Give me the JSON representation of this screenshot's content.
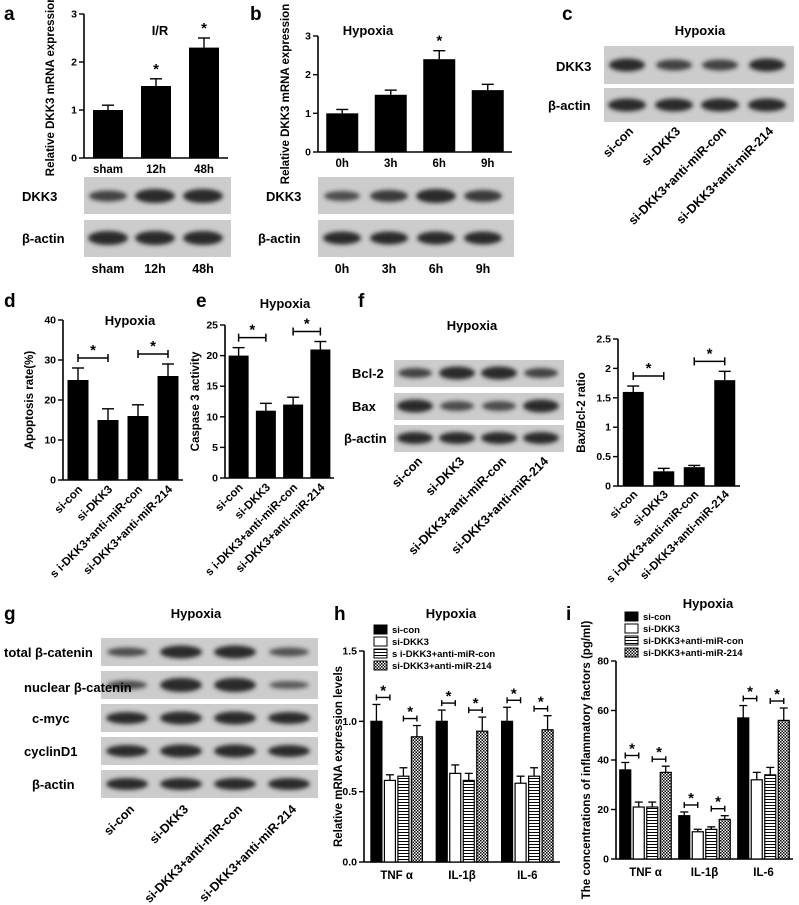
{
  "figure": {
    "panels": [
      {
        "id": "a",
        "label": "a"
      },
      {
        "id": "b",
        "label": "b"
      },
      {
        "id": "c",
        "label": "c"
      },
      {
        "id": "d",
        "label": "d"
      },
      {
        "id": "e",
        "label": "e"
      },
      {
        "id": "f",
        "label": "f"
      },
      {
        "id": "g",
        "label": "g"
      },
      {
        "id": "h",
        "label": "h"
      },
      {
        "id": "i",
        "label": "i"
      }
    ]
  },
  "blots": {
    "a": {
      "bands": [
        "DKK3",
        "β-actin"
      ],
      "lanes": [
        "sham",
        "12h",
        "48h"
      ]
    },
    "b": {
      "bands": [
        "DKK3",
        "β-actin"
      ],
      "lanes": [
        "0h",
        "3h",
        "6h",
        "9h"
      ]
    },
    "c": {
      "title": "Hypoxia",
      "bands": [
        "DKK3",
        "β-actin"
      ],
      "lanes": [
        "si-con",
        "si-DKK3",
        "si-DKK3+anti-miR-con",
        "si-DKK3+anti-miR-214"
      ]
    },
    "f": {
      "title": "Hypoxia",
      "bands": [
        "Bcl-2",
        "Bax",
        "β-actin"
      ],
      "lanes": [
        "si-con",
        "si-DKK3",
        "si-DKK3+anti-miR-con",
        "si-DKK3+anti-miR-214"
      ]
    },
    "g": {
      "title": "Hypoxia",
      "bands": [
        "total β-catenin",
        "nuclear β-catenin",
        "c-myc",
        "cyclinD1",
        "β-actin"
      ],
      "lanes": [
        "si-con",
        "si-DKK3",
        "si-DKK3+anti-miR-con",
        "si-DKK3+anti-miR-214"
      ]
    }
  },
  "chart_data": [
    {
      "id": "a",
      "type": "bar",
      "title": "I/R",
      "ylabel": "Relative DKK3 mRNA expression",
      "categories": [
        "sham",
        "12h",
        "48h"
      ],
      "values": [
        1.0,
        1.5,
        2.3
      ],
      "errors": [
        0.1,
        0.15,
        0.2
      ],
      "ylim": [
        0,
        3
      ],
      "yticks": [
        0,
        1,
        2,
        3
      ],
      "significance": [
        "",
        "*",
        "*"
      ]
    },
    {
      "id": "b",
      "type": "bar",
      "title": "Hypoxia",
      "ylabel": "Relative DKK3 mRNA expression",
      "categories": [
        "0h",
        "3h",
        "6h",
        "9h"
      ],
      "values": [
        1.0,
        1.48,
        2.4,
        1.6
      ],
      "errors": [
        0.1,
        0.12,
        0.22,
        0.15
      ],
      "ylim": [
        0,
        3
      ],
      "yticks": [
        0,
        1,
        2,
        3
      ],
      "significance": [
        "",
        "",
        "*",
        ""
      ]
    },
    {
      "id": "d",
      "type": "bar",
      "title": "Hypoxia",
      "ylabel": "Apoptosis rate(%)",
      "categories": [
        "si-con",
        "si-DKK3",
        "s i-DKK3+anti-miR-con",
        "si-DKK3+anti-miR-214"
      ],
      "values": [
        25,
        15,
        16,
        26
      ],
      "errors": [
        3,
        2.8,
        2.8,
        3
      ],
      "ylim": [
        0,
        40
      ],
      "yticks": [
        0,
        10,
        20,
        30,
        40
      ],
      "comparisons": [
        [
          0,
          1
        ],
        [
          2,
          3
        ]
      ]
    },
    {
      "id": "e",
      "type": "bar",
      "title": "Hypoxia",
      "ylabel": "Caspase 3 activity",
      "categories": [
        "si-con",
        "si-DKK3",
        "s i-DKK3+anti-miR-con",
        "si-DKK3+anti-miR-214"
      ],
      "values": [
        20,
        11,
        12,
        21
      ],
      "errors": [
        1.3,
        1.2,
        1.2,
        1.3
      ],
      "ylim": [
        0,
        25
      ],
      "yticks": [
        0,
        5,
        10,
        15,
        20,
        25
      ],
      "comparisons": [
        [
          0,
          1
        ],
        [
          2,
          3
        ]
      ]
    },
    {
      "id": "f",
      "type": "bar",
      "ylabel": "Bax/Bcl-2 ratio",
      "categories": [
        "si-con",
        "si-DKK3",
        "s i-DKK3+anti-miR-con",
        "si-DKK3+anti-miR-214"
      ],
      "values": [
        1.6,
        0.25,
        0.32,
        1.8
      ],
      "errors": [
        0.1,
        0.05,
        0.03,
        0.15
      ],
      "ylim": [
        0,
        2.5
      ],
      "yticks": [
        0.0,
        0.5,
        1.0,
        1.5,
        2.0,
        2.5
      ],
      "comparisons": [
        [
          0,
          1
        ],
        [
          2,
          3
        ]
      ]
    },
    {
      "id": "h",
      "type": "bar",
      "title": "Hypoxia",
      "ylabel": "Relative mRNA expression levels",
      "categories": [
        "TNF α",
        "IL-1β",
        "IL-6"
      ],
      "series": [
        {
          "name": "si-con",
          "values": [
            1.0,
            1.0,
            1.0
          ],
          "errors": [
            0.12,
            0.08,
            0.1
          ]
        },
        {
          "name": "si-DKK3",
          "values": [
            0.58,
            0.63,
            0.56
          ],
          "errors": [
            0.04,
            0.06,
            0.05
          ]
        },
        {
          "name": "s i-DKK3+anti-miR-con",
          "values": [
            0.61,
            0.58,
            0.61
          ],
          "errors": [
            0.06,
            0.05,
            0.06
          ]
        },
        {
          "name": "si-DKK3+anti-miR-214",
          "values": [
            0.89,
            0.93,
            0.94
          ],
          "errors": [
            0.08,
            0.1,
            0.1
          ]
        }
      ],
      "ylim": [
        0,
        1.5
      ],
      "yticks": [
        "0.0",
        "0.5",
        "1.0",
        "1.5"
      ]
    },
    {
      "id": "i",
      "type": "bar",
      "title": "Hypoxia",
      "ylabel": "The concentrations of inflammatory factors (pg/ml)",
      "categories": [
        "TNF α",
        "IL-1β",
        "IL-6"
      ],
      "series": [
        {
          "name": "si-con",
          "values": [
            36,
            17.5,
            57
          ],
          "errors": [
            3,
            1.5,
            5
          ]
        },
        {
          "name": "si-DKK3",
          "values": [
            21,
            11,
            32
          ],
          "errors": [
            2,
            1,
            3
          ]
        },
        {
          "name": "si-DKK3+anti-miR-con",
          "values": [
            21,
            12,
            34
          ],
          "errors": [
            2,
            1,
            3
          ]
        },
        {
          "name": "si-DKK3+anti-miR-214",
          "values": [
            35,
            16,
            56
          ],
          "errors": [
            2.5,
            1.5,
            5
          ]
        }
      ],
      "ylim": [
        0,
        80
      ],
      "yticks": [
        0,
        20,
        40,
        60,
        80
      ]
    }
  ]
}
